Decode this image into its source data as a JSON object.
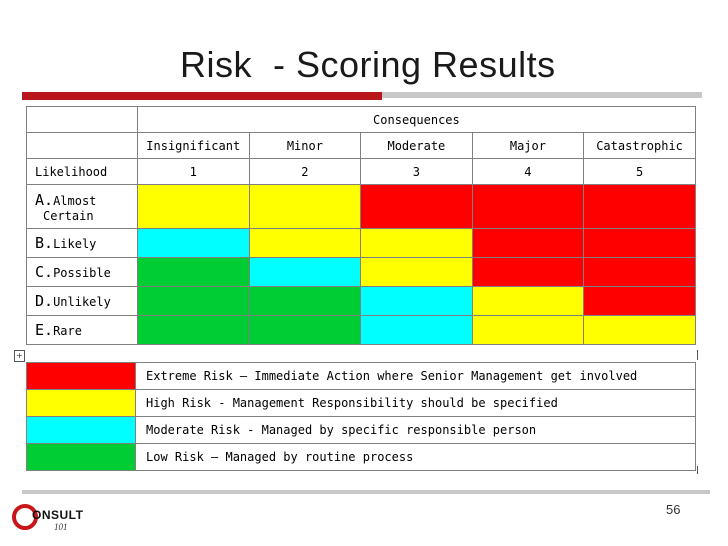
{
  "title": "Risk  - Scoring Results",
  "page_number": "56",
  "logo": {
    "text": "ONSULT",
    "sub": "101"
  },
  "matrix": {
    "consequences_label": "Consequences",
    "likelihood_label": "Likelihood",
    "columns": [
      {
        "name": "Insignificant",
        "score": "1"
      },
      {
        "name": "Minor",
        "score": "2"
      },
      {
        "name": "Moderate",
        "score": "3"
      },
      {
        "name": "Major",
        "score": "4"
      },
      {
        "name": "Catastrophic",
        "score": "5"
      }
    ],
    "rows": [
      {
        "letter": "A.",
        "label": "Almost",
        "label2": "Certain",
        "cells": [
          "yellow",
          "yellow",
          "red",
          "red",
          "red"
        ]
      },
      {
        "letter": "B.",
        "label": "Likely",
        "cells": [
          "cyan",
          "yellow",
          "yellow",
          "red",
          "red"
        ]
      },
      {
        "letter": "C.",
        "label": "Possible",
        "cells": [
          "green",
          "cyan",
          "yellow",
          "red",
          "red"
        ]
      },
      {
        "letter": "D.",
        "label": "Unlikely",
        "cells": [
          "green",
          "green",
          "cyan",
          "yellow",
          "red"
        ]
      },
      {
        "letter": "E.",
        "label": "Rare",
        "cells": [
          "green",
          "green",
          "cyan",
          "yellow",
          "yellow"
        ]
      }
    ]
  },
  "legend": [
    {
      "color": "#ff0000",
      "text": "Extreme Risk – Immediate Action where Senior Management get involved"
    },
    {
      "color": "#ffff00",
      "text": "High Risk -  Management Responsibility should be specified"
    },
    {
      "color": "#00ffff",
      "text": "Moderate Risk -  Managed by specific responsible person"
    },
    {
      "color": "#00cc33",
      "text": "Low Risk – Managed by routine process"
    }
  ],
  "colors": {
    "accent_red": "#b8161a",
    "rule_gray": "#c8c8c8"
  }
}
